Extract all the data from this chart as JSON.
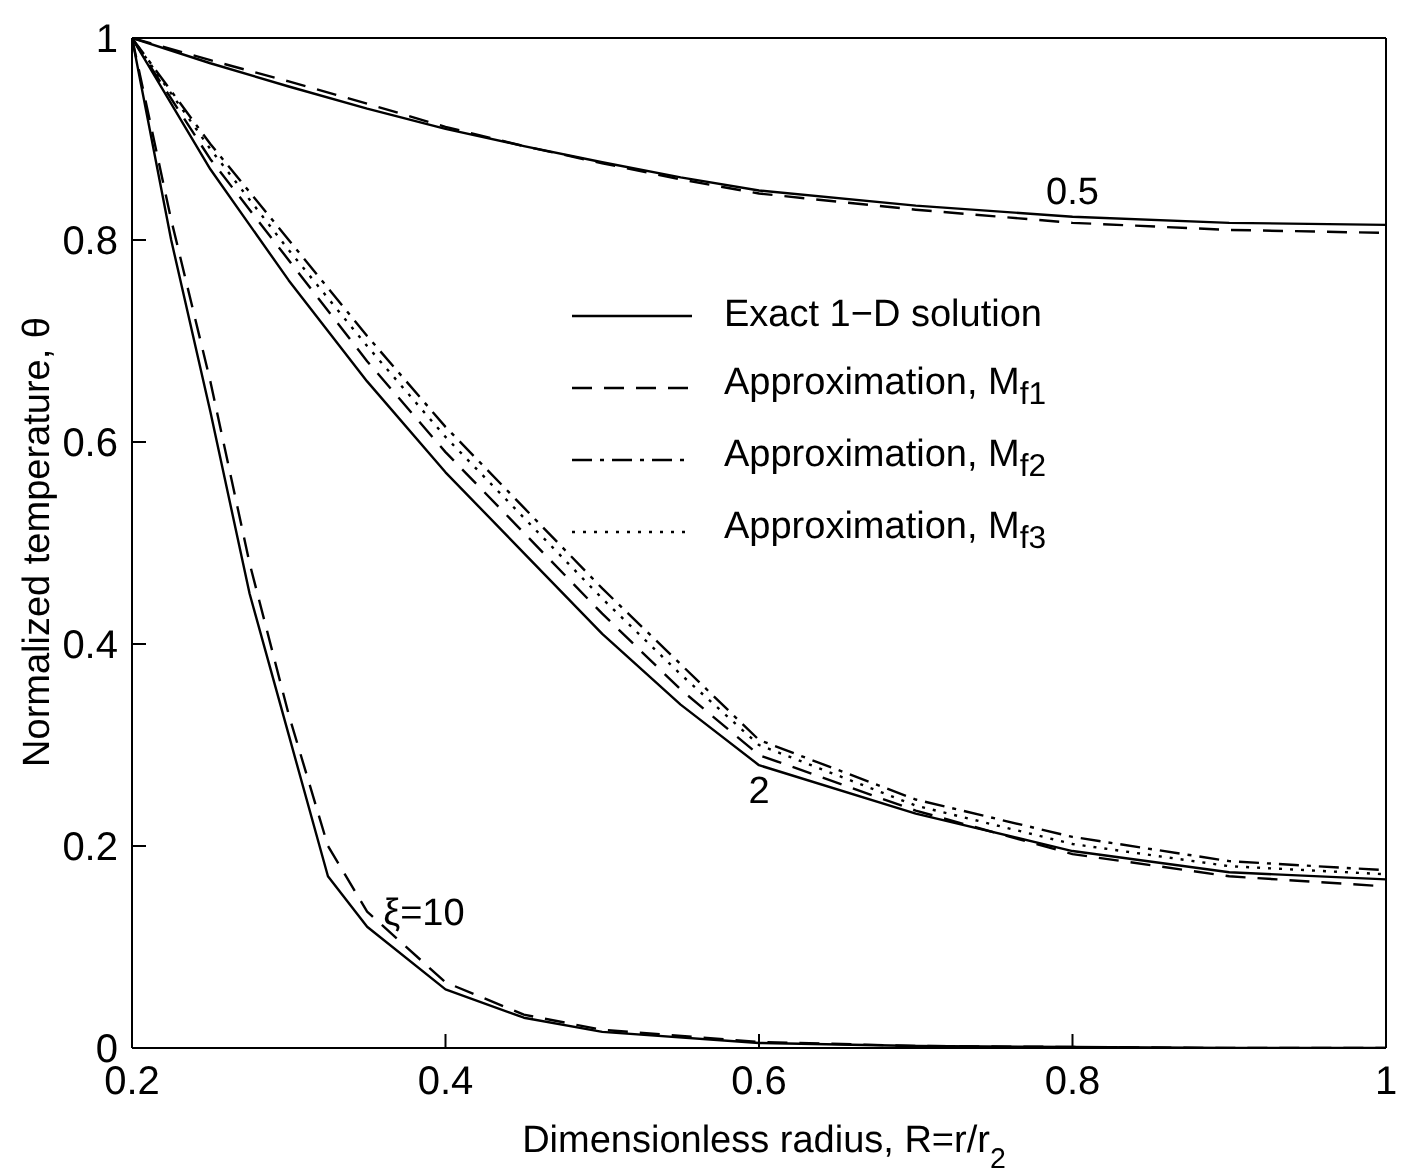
{
  "chart_data": {
    "type": "line",
    "xlabel": "Dimensionless radius, R=r/r$_{2}$",
    "ylabel": "Normalized temperature, θ",
    "xlim": [
      0.2,
      1
    ],
    "xticks": [
      0.2,
      0.4,
      0.6,
      0.8,
      1
    ],
    "ylim": [
      0,
      1
    ],
    "yticks": [
      0,
      0.2,
      0.4,
      0.6,
      0.8,
      1
    ],
    "legend": "right",
    "marker": "none",
    "series": [
      {
        "color": "#000000",
        "line_style": "solid",
        "x": [
          0.2,
          0.25,
          0.3,
          0.35,
          0.4,
          0.45,
          0.5,
          0.55,
          0.6,
          0.7,
          0.8,
          0.9,
          1
        ],
        "values": [
          1,
          0.975,
          0.952,
          0.93,
          0.91,
          0.893,
          0.877,
          0.862,
          0.849,
          0.834,
          0.823,
          0.817,
          0.815
        ]
      },
      {
        "color": "#000000",
        "line_style": "dashed",
        "x": [
          0.2,
          0.25,
          0.3,
          0.35,
          0.4,
          0.45,
          0.5,
          0.55,
          0.6,
          0.7,
          0.8,
          0.9,
          1
        ],
        "values": [
          1,
          0.978,
          0.957,
          0.935,
          0.912,
          0.893,
          0.876,
          0.86,
          0.846,
          0.83,
          0.817,
          0.81,
          0.807
        ]
      },
      {
        "name": "Exact 1−D solution",
        "color": "#000000",
        "line_style": "solid",
        "x": [
          0.2,
          0.25,
          0.3,
          0.35,
          0.4,
          0.45,
          0.5,
          0.55,
          0.6,
          0.7,
          0.8,
          0.9,
          1
        ],
        "values": [
          1,
          0.87,
          0.76,
          0.66,
          0.57,
          0.49,
          0.41,
          0.34,
          0.28,
          0.232,
          0.195,
          0.174,
          0.167
        ]
      },
      {
        "name": "Approximation, M$_{f1}$",
        "color": "#000000",
        "line_style": "dashed",
        "x": [
          0.2,
          0.25,
          0.3,
          0.35,
          0.4,
          0.45,
          0.5,
          0.55,
          0.6,
          0.7,
          0.8,
          0.9,
          1
        ],
        "values": [
          1,
          0.88,
          0.78,
          0.68,
          0.59,
          0.51,
          0.43,
          0.355,
          0.29,
          0.235,
          0.192,
          0.17,
          0.16
        ]
      },
      {
        "name": "Approximation, M$_{f2}$",
        "color": "#000000",
        "line_style": "dashdot",
        "x": [
          0.2,
          0.25,
          0.3,
          0.35,
          0.4,
          0.45,
          0.5,
          0.55,
          0.6,
          0.7,
          0.8,
          0.9,
          1
        ],
        "values": [
          1,
          0.895,
          0.8,
          0.705,
          0.615,
          0.535,
          0.455,
          0.38,
          0.305,
          0.246,
          0.209,
          0.185,
          0.176
        ]
      },
      {
        "name": "Approximation, M$_{f3}$",
        "color": "#000000",
        "line_style": "dotted",
        "x": [
          0.2,
          0.25,
          0.3,
          0.35,
          0.4,
          0.45,
          0.5,
          0.55,
          0.6,
          0.7,
          0.8,
          0.9,
          1
        ],
        "values": [
          1,
          0.89,
          0.79,
          0.695,
          0.605,
          0.525,
          0.445,
          0.37,
          0.3,
          0.24,
          0.202,
          0.18,
          0.172
        ]
      },
      {
        "color": "#000000",
        "line_style": "solid",
        "x": [
          0.2,
          0.225,
          0.25,
          0.275,
          0.3,
          0.325,
          0.35,
          0.4,
          0.45,
          0.5,
          0.6,
          0.7,
          0.8,
          0.9,
          1
        ],
        "values": [
          1,
          0.8,
          0.63,
          0.45,
          0.31,
          0.17,
          0.12,
          0.058,
          0.03,
          0.016,
          0.005,
          0.002,
          0.001,
          0,
          0
        ]
      },
      {
        "color": "#000000",
        "line_style": "dashed",
        "x": [
          0.2,
          0.225,
          0.25,
          0.275,
          0.3,
          0.325,
          0.35,
          0.4,
          0.45,
          0.5,
          0.6,
          0.7,
          0.8,
          0.9,
          1
        ],
        "values": [
          1,
          0.82,
          0.66,
          0.48,
          0.33,
          0.2,
          0.135,
          0.065,
          0.033,
          0.018,
          0.006,
          0.002,
          0.001,
          0,
          0
        ]
      }
    ],
    "annotations": [
      {
        "text": "0.5",
        "x": 0.8,
        "y": 0.82
      },
      {
        "text": "2",
        "x": 0.6,
        "y": 0.285
      },
      {
        "text": "ξ=10",
        "x": 0.35,
        "y": 0.135
      }
    ]
  }
}
